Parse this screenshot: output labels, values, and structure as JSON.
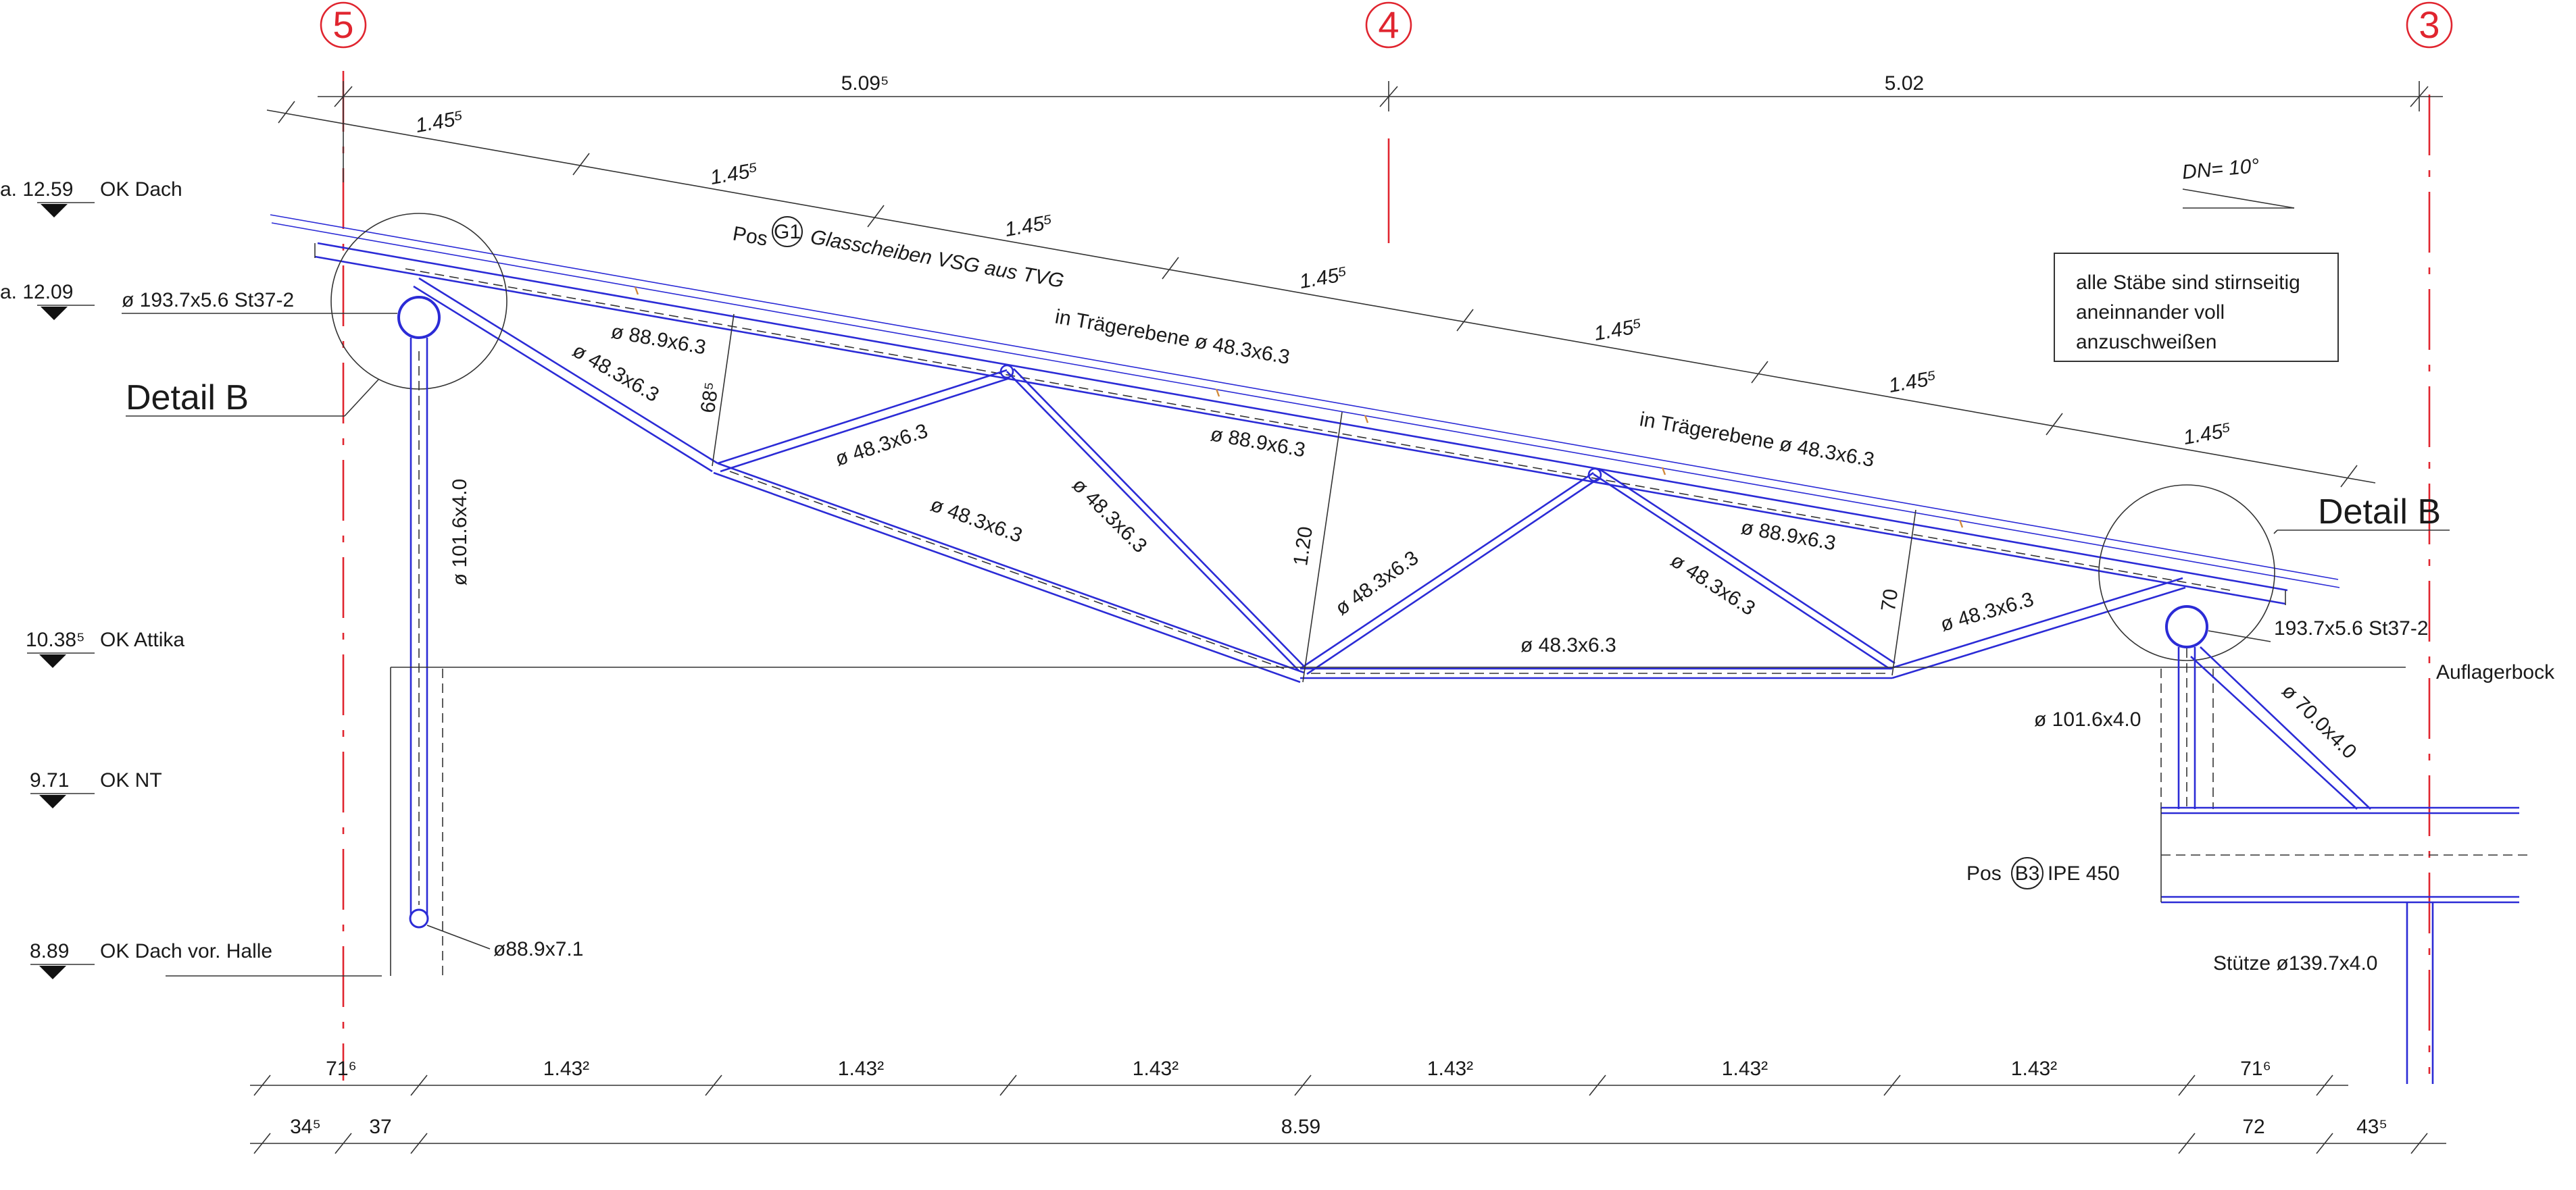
{
  "axes": {
    "left": "5",
    "middle": "4",
    "right": "3"
  },
  "top_dims": [
    "5.09⁵",
    "5.02"
  ],
  "slope_dims": [
    "1.45⁵",
    "1.45⁵",
    "1.45⁵",
    "1.45⁵",
    "1.45⁵",
    "1.45⁵",
    "1.45⁵"
  ],
  "roof_pitch": "DN= 10°",
  "note": {
    "line1": "alle Stäbe sind stirnseitig",
    "line2": "aneinnander voll",
    "line3": "anzuschweißen"
  },
  "levels": [
    {
      "value": "a. 12.59",
      "label": "OK Dach"
    },
    {
      "value": "a. 12.09",
      "label": ""
    },
    {
      "value": "10.38⁵",
      "label": "OK Attika"
    },
    {
      "value": "9.71",
      "label": "OK NT"
    },
    {
      "value": "8.89",
      "label": "OK Dach vor. Halle"
    }
  ],
  "labels": {
    "pos_g1_prefix": "Pos",
    "pos_g1_tag": "G1",
    "pos_g1_text": "Glasscheiben VSG aus TVG",
    "in_plane_1": "in Trägerebene ø 48.3x6.3",
    "in_plane_2": "in Trägerebene ø 48.3x6.3",
    "tube_left": "ø 193.7x5.6 St37-2",
    "tube_right": "193.7x5.6 St37-2",
    "detail_left": "Detail B",
    "detail_right": "Detail B",
    "chord_1": "ø 88.9x6.3",
    "chord_2": "ø 88.9x6.3",
    "chord_3": "ø 88.9x6.3",
    "diag_1": "ø 48.3x6.3",
    "diag_2": "ø 48.3x6.3",
    "diag_3": "ø 48.3x6.3",
    "diag_4": "ø 48.3x6.3",
    "diag_5": "ø 48.3x6.3",
    "diag_6": "ø 48.3x6.3",
    "diag_7": "ø 48.3x6.3",
    "bottom_chord": "ø 48.3x6.3",
    "height_1": "68⁵",
    "height_2": "1.20",
    "height_3": "70",
    "column_left": "ø 101.6x4.0",
    "column_right": "ø 101.6x4.0",
    "brace_right": "ø 70.0x4.0",
    "base_left": "ø88.9x7.1",
    "auflager": "Auflagerbock",
    "pos_b3_prefix": "Pos",
    "pos_b3_tag": "B3",
    "pos_b3_text": "IPE 450",
    "stuetze": "Stütze ø139.7x4.0"
  },
  "bottom_dims_row1": [
    "71⁶",
    "1.43²",
    "1.43²",
    "1.43²",
    "1.43²",
    "1.43²",
    "1.43²",
    "71⁶"
  ],
  "bottom_dims_row2": [
    "34⁵",
    "37",
    "8.59",
    "72",
    "43⁵"
  ]
}
